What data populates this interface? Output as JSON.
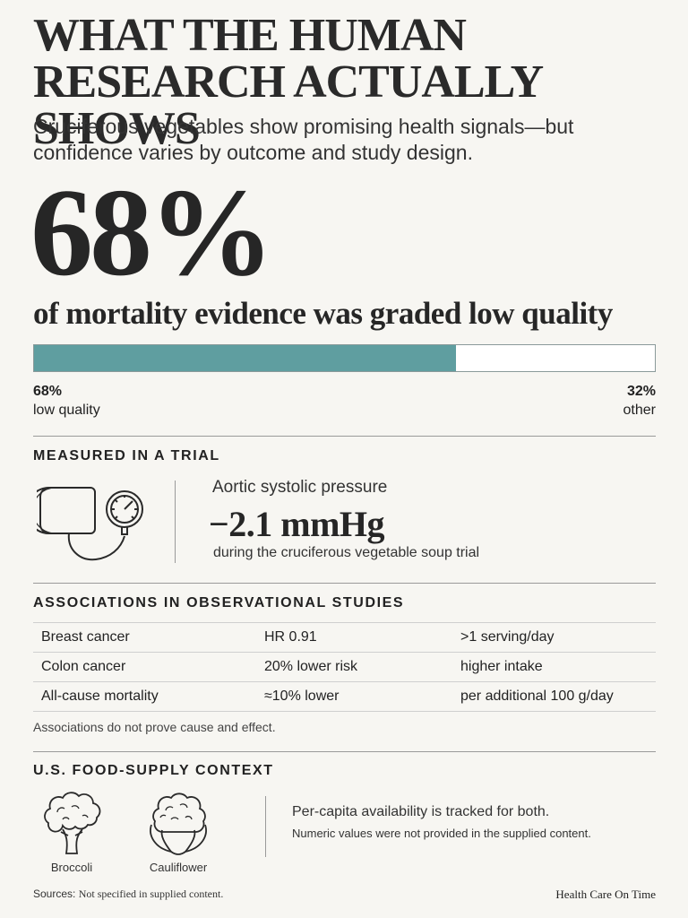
{
  "header": {
    "title_line1": "WHAT THE HUMAN",
    "title_line2": "RESEARCH ACTUALLY SHOWS",
    "subtitle": "Cruciferous vegetables show promising health signals—but confidence varies by outcome and study design."
  },
  "headline_stat": {
    "value": "68%",
    "caption": "of mortality evidence was graded low quality",
    "low_quality_fraction": 0.68,
    "low_label_pct": "68%",
    "low_label_text": "low quality",
    "other_label_pct": "32%",
    "other_label_text": "other",
    "bar_color": "#5f9ea0"
  },
  "trial": {
    "heading": "MEASURED IN A TRIAL",
    "icon": "blood-pressure-cuff-icon",
    "label": "Aortic systolic pressure",
    "value": "−2.1 mmHg",
    "note": "during the cruciferous vegetable soup trial"
  },
  "observational": {
    "heading": "ASSOCIATIONS IN OBSERVATIONAL STUDIES",
    "rows": [
      {
        "outcome": "Breast cancer",
        "effect": "HR 0.91",
        "exposure": ">1 serving/day"
      },
      {
        "outcome": "Colon cancer",
        "effect": "20% lower risk",
        "exposure": "higher intake"
      },
      {
        "outcome": "All-cause mortality",
        "effect": "≈10% lower",
        "exposure": "per additional 100 g/day"
      }
    ],
    "footnote": "Associations do not prove cause and effect."
  },
  "food_supply": {
    "heading": "U.S. FOOD-SUPPLY CONTEXT",
    "items": [
      {
        "label": "Broccoli",
        "icon": "broccoli-icon"
      },
      {
        "label": "Cauliflower",
        "icon": "cauliflower-icon"
      }
    ],
    "line1": "Per-capita availability is tracked for both.",
    "line2": "Numeric values were not provided in the supplied content."
  },
  "footer": {
    "sources_label": "Sources:",
    "sources_text": "Not specified in supplied content.",
    "brand": "Health Care On Time"
  }
}
